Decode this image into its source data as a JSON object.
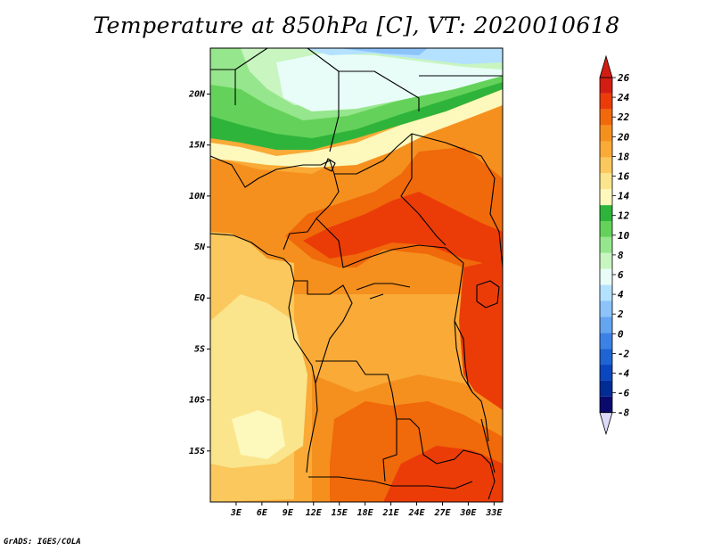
{
  "title": "Temperature at 850hPa [C], VT: 2020010618",
  "credit": "GrADS: IGES/COLA",
  "map": {
    "lat_labels": [
      "20N",
      "15N",
      "10N",
      "5N",
      "EQ",
      "5S",
      "10S",
      "15S"
    ],
    "lat_values": [
      20,
      15,
      10,
      5,
      0,
      -5,
      -10,
      -15
    ],
    "lon_labels": [
      "3E",
      "6E",
      "9E",
      "12E",
      "15E",
      "18E",
      "21E",
      "24E",
      "27E",
      "30E",
      "33E"
    ],
    "lon_values": [
      3,
      6,
      9,
      12,
      15,
      18,
      21,
      24,
      27,
      30,
      33
    ],
    "lon_range": [
      0,
      34
    ],
    "lat_range": [
      -20,
      24.5
    ]
  },
  "colorbar": {
    "labels": [
      "26",
      "24",
      "22",
      "20",
      "18",
      "16",
      "14",
      "12",
      "10",
      "8",
      "6",
      "4",
      "2",
      "0",
      "-2",
      "-4",
      "-6",
      "-8"
    ],
    "colors": [
      "#d21e12",
      "#eb3c08",
      "#f0690a",
      "#f5901e",
      "#f9aa37",
      "#fac85c",
      "#fbe58c",
      "#fdf8bb",
      "#2fb43b",
      "#64d25a",
      "#96e68d",
      "#c8f5c0",
      "#e8fdf7",
      "#b4e1ff",
      "#8cc3fa",
      "#64a5f0",
      "#3c82e6",
      "#1e64d2",
      "#0a46be",
      "#002c96",
      "#0a0a6e"
    ],
    "top_arrow_color": "#d21e12",
    "bottom_arrow_color": "#dcdcfa"
  },
  "fills": {
    "ocean": "#fbe58c",
    "south_atlantic": "#fdf8bb",
    "central": "#f9aa37",
    "coast": "#fac85c",
    "orange": "#f5901e",
    "deep_orange": "#f0690a",
    "red": "#eb3c08",
    "sahel_yellow": "#fdf8bb",
    "green_dark": "#2fb43b",
    "green_mid": "#64d25a",
    "green_light": "#96e68d",
    "green_pale": "#c8f5c0",
    "cyan_pale": "#e8fdf7",
    "blue_pale": "#b4e1ff",
    "blue": "#8cc3fa"
  }
}
